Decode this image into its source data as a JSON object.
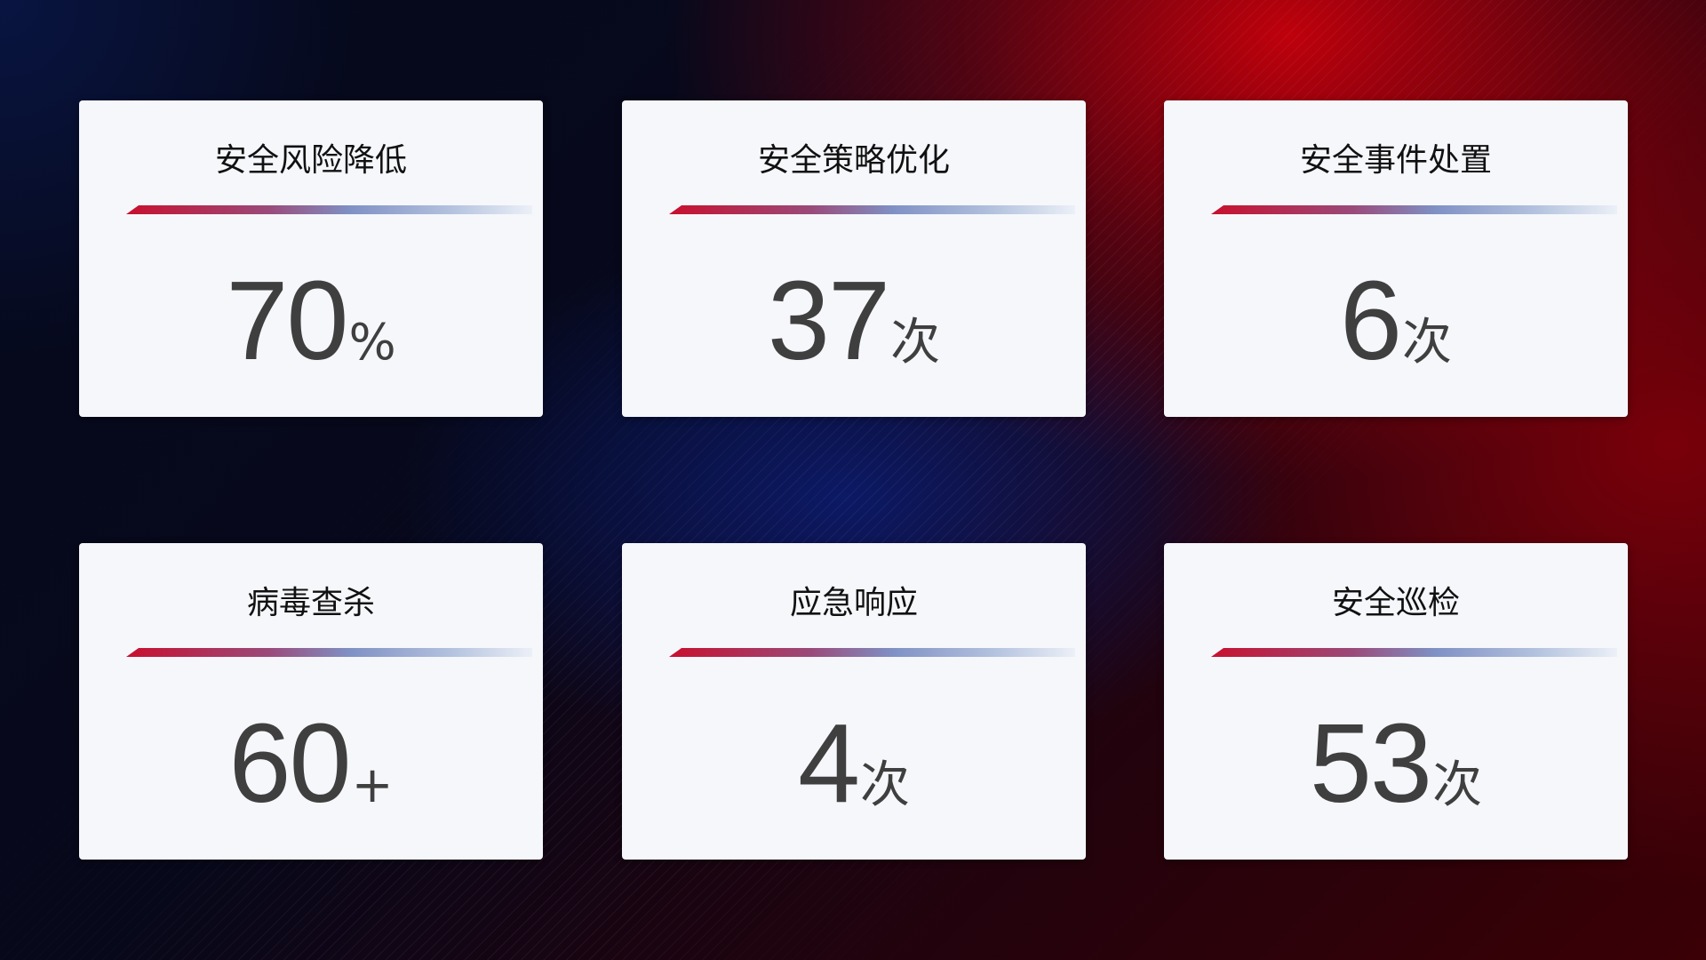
{
  "cards": [
    {
      "title": "安全风险降低",
      "value": "70",
      "unit": "%"
    },
    {
      "title": "安全策略优化",
      "value": "37",
      "unit": "次"
    },
    {
      "title": "安全事件处置",
      "value": "6",
      "unit": "次"
    },
    {
      "title": "病毒查杀",
      "value": "60",
      "unit": "+"
    },
    {
      "title": "应急响应",
      "value": "4",
      "unit": "次"
    },
    {
      "title": "安全巡检",
      "value": "53",
      "unit": "次"
    }
  ],
  "colors": {
    "accent_red": "#c8102e",
    "accent_blue": "#7f90c4",
    "card_bg": "#f5f7fb",
    "value_text": "#3f3f3f"
  }
}
